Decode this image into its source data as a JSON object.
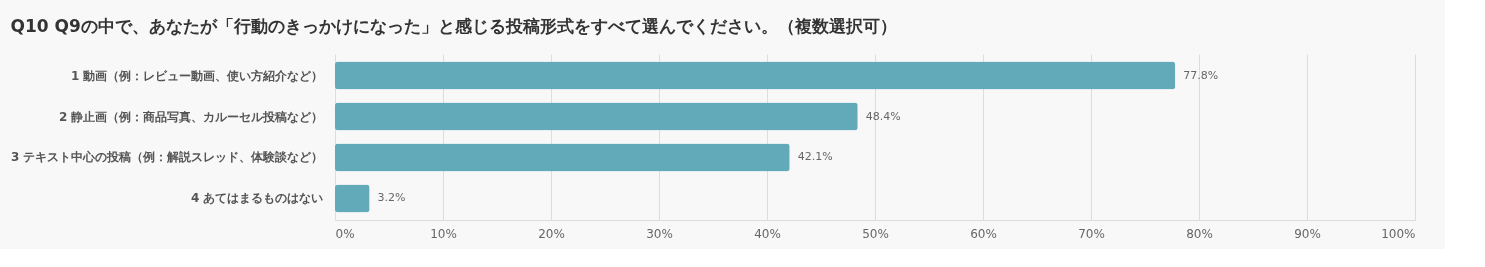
{
  "chart_data": {
    "type": "bar",
    "orientation": "horizontal",
    "title": "Q10 Q9の中で、あなたが「行動のきっかけになった」と感じる投稿形式をすべて選んでください。（複数選択可）",
    "categories": [
      "1 動画（例：レビュー動画、使い方紹介など）",
      "2 静止画（例：商品写真、カルーセル投稿など）",
      "3 テキスト中心の投稿（例：解説スレッド、体験談など）",
      "4 あてはまるものはない"
    ],
    "values": [
      77.8,
      48.4,
      42.1,
      3.2
    ],
    "value_labels": [
      "77.8%",
      "48.4%",
      "42.1%",
      "3.2%"
    ],
    "color": "#62a9b9",
    "xlim": [
      0,
      100
    ],
    "xticks": [
      {
        "value": 0,
        "label": "0%"
      },
      {
        "value": 10,
        "label": "10%"
      },
      {
        "value": 20,
        "label": "20%"
      },
      {
        "value": 30,
        "label": "30%"
      },
      {
        "value": 40,
        "label": "40%"
      },
      {
        "value": 50,
        "label": "50%"
      },
      {
        "value": 60,
        "label": "60%"
      },
      {
        "value": 70,
        "label": "70%"
      },
      {
        "value": 80,
        "label": "80%"
      },
      {
        "value": 90,
        "label": "90%"
      },
      {
        "value": 100,
        "label": "100%"
      }
    ],
    "grid": "x"
  }
}
